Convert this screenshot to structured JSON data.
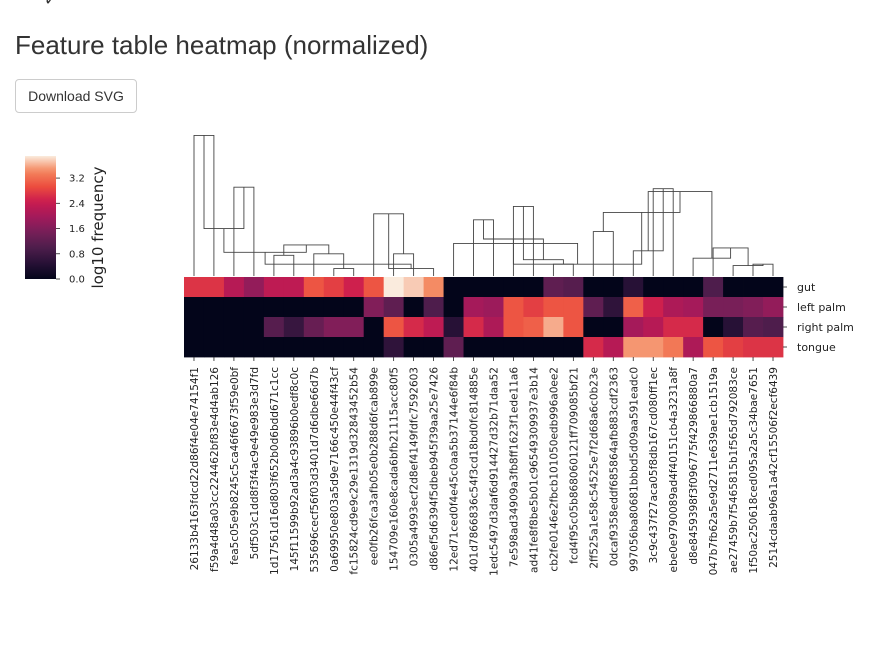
{
  "page": {
    "title": "Feature table heatmap (normalized)",
    "download_label": "Download SVG"
  },
  "chart_data": {
    "type": "heatmap",
    "title": "",
    "xlabel": "",
    "ylabel": "",
    "colormap": "rocket",
    "colors": {
      "dendrogram": "#444444",
      "label": "#222222"
    },
    "colorbar": {
      "label": "log10 frequency",
      "ticks": [
        "0.0",
        "0.8",
        "1.6",
        "2.4",
        "3.2"
      ],
      "range": [
        0,
        3.9
      ]
    },
    "rows": [
      "gut",
      "left palm",
      "right palm",
      "tongue"
    ],
    "columns": [
      "26133b4163fdcd22d86f4e04e74154f1",
      "f59a4d48a03cc224462bf83e4d4ab126",
      "fea5c05e9b8245c5ca46f6673f59e0bf",
      "5df503c1dd8f3f4ac9e49e983e3d7fd",
      "1d17561d16d803f652b0d6bdd671c1cc",
      "145f11599b92ad3a4c93896b0edf8c0c",
      "535696cecf56f03d3401d7d6dbe66d7b",
      "0a69950e803a5d9e7166c450e44f43cf",
      "fc15824cd9e9c29e1319d32843452b54",
      "ee0fb26fca3afb05e0b288d6fcab899e",
      "154709e160e8cada6bfb21115acc80f5",
      "0305a4993ecf2d8ef4149fdfc7592603",
      "d86ef5d6394f5dbeb945f39aa25e7426",
      "12ed71ced0f4e45c0aa5b37144e6f84b",
      "401d7866836c54f3cd18bd0fc814885e",
      "1edc5497d3daf6d914427d32b71daa52",
      "7e598ad34909a3fb8ff1623f1ede11a6",
      "ad41fe8f8be5b01c96549309937e3b14",
      "cb2fe0146e2fbcb101050edb996a0ee2",
      "fcd4f95c05b86806012 1ff709085bf21",
      "2ff525a1e58c5452 5e7f2d68a6c0b23e",
      "0dcaf9358eddf685864afb883cdf2363",
      "997056ba80681bbbd5d09aa591eadc0",
      "3c9c437f27aca05f8db167cd080ff1ec",
      "ebe0e9790089ad4f40151cb4a3231a8f",
      "d8e8459398f3f0967 75f42986 6880a7",
      "047b7fb62a5e9d2711e639ae1cb1519a",
      "ae27459b7f5465815b1f565d792083ce",
      "1f50ac250618ced095a2a5c34bae7651",
      "2514cdaab96a1a42cf15506f2ecf6439"
    ],
    "values": [
      [
        2.7,
        2.7,
        2.2,
        1.8,
        2.3,
        2.3,
        3.0,
        2.8,
        2.5,
        3.0,
        3.9,
        3.75,
        3.45,
        0.0,
        0.0,
        0.0,
        0.0,
        0.0,
        1.2,
        1.1,
        0.0,
        0.0,
        0.5,
        0.0,
        0.0,
        0.0,
        1.0,
        0.0,
        0.0,
        0.0
      ],
      [
        0.0,
        0.0,
        0.0,
        0.0,
        0.0,
        0.0,
        0.0,
        0.0,
        0.0,
        1.6,
        1.2,
        0.0,
        1.0,
        0.0,
        2.0,
        1.9,
        3.0,
        2.8,
        3.0,
        3.0,
        1.2,
        0.6,
        3.1,
        2.5,
        2.1,
        2.0,
        1.5,
        1.5,
        1.6,
        1.8
      ],
      [
        0.0,
        0.0,
        0.0,
        0.0,
        1.1,
        0.7,
        1.3,
        1.6,
        1.6,
        0.0,
        3.0,
        2.6,
        2.3,
        0.5,
        2.6,
        2.1,
        3.0,
        3.1,
        3.6,
        3.0,
        0.0,
        0.0,
        2.0,
        2.2,
        2.6,
        2.6,
        0.0,
        0.5,
        1.1,
        1.0
      ],
      [
        0.0,
        0.0,
        0.0,
        0.0,
        0.0,
        0.0,
        0.0,
        0.0,
        0.0,
        0.0,
        0.6,
        0.0,
        0.0,
        1.2,
        0.0,
        0.0,
        0.0,
        0.0,
        0.0,
        0.0,
        2.6,
        2.2,
        3.5,
        3.5,
        3.3,
        2.1,
        3.0,
        2.8,
        2.7,
        2.7
      ]
    ],
    "dendrogram_heights": [
      0.95,
      0.6,
      0.32,
      0.14,
      0.05,
      0.15,
      0.21,
      0.16,
      0.15,
      0.42,
      0.05,
      0.08,
      0.38,
      0.47,
      0.08,
      0.11,
      0.25,
      0.3,
      0.59,
      0.17,
      0.08,
      0.07,
      0.19,
      0.12,
      0.57,
      0.43,
      0.08,
      0.22
    ]
  }
}
